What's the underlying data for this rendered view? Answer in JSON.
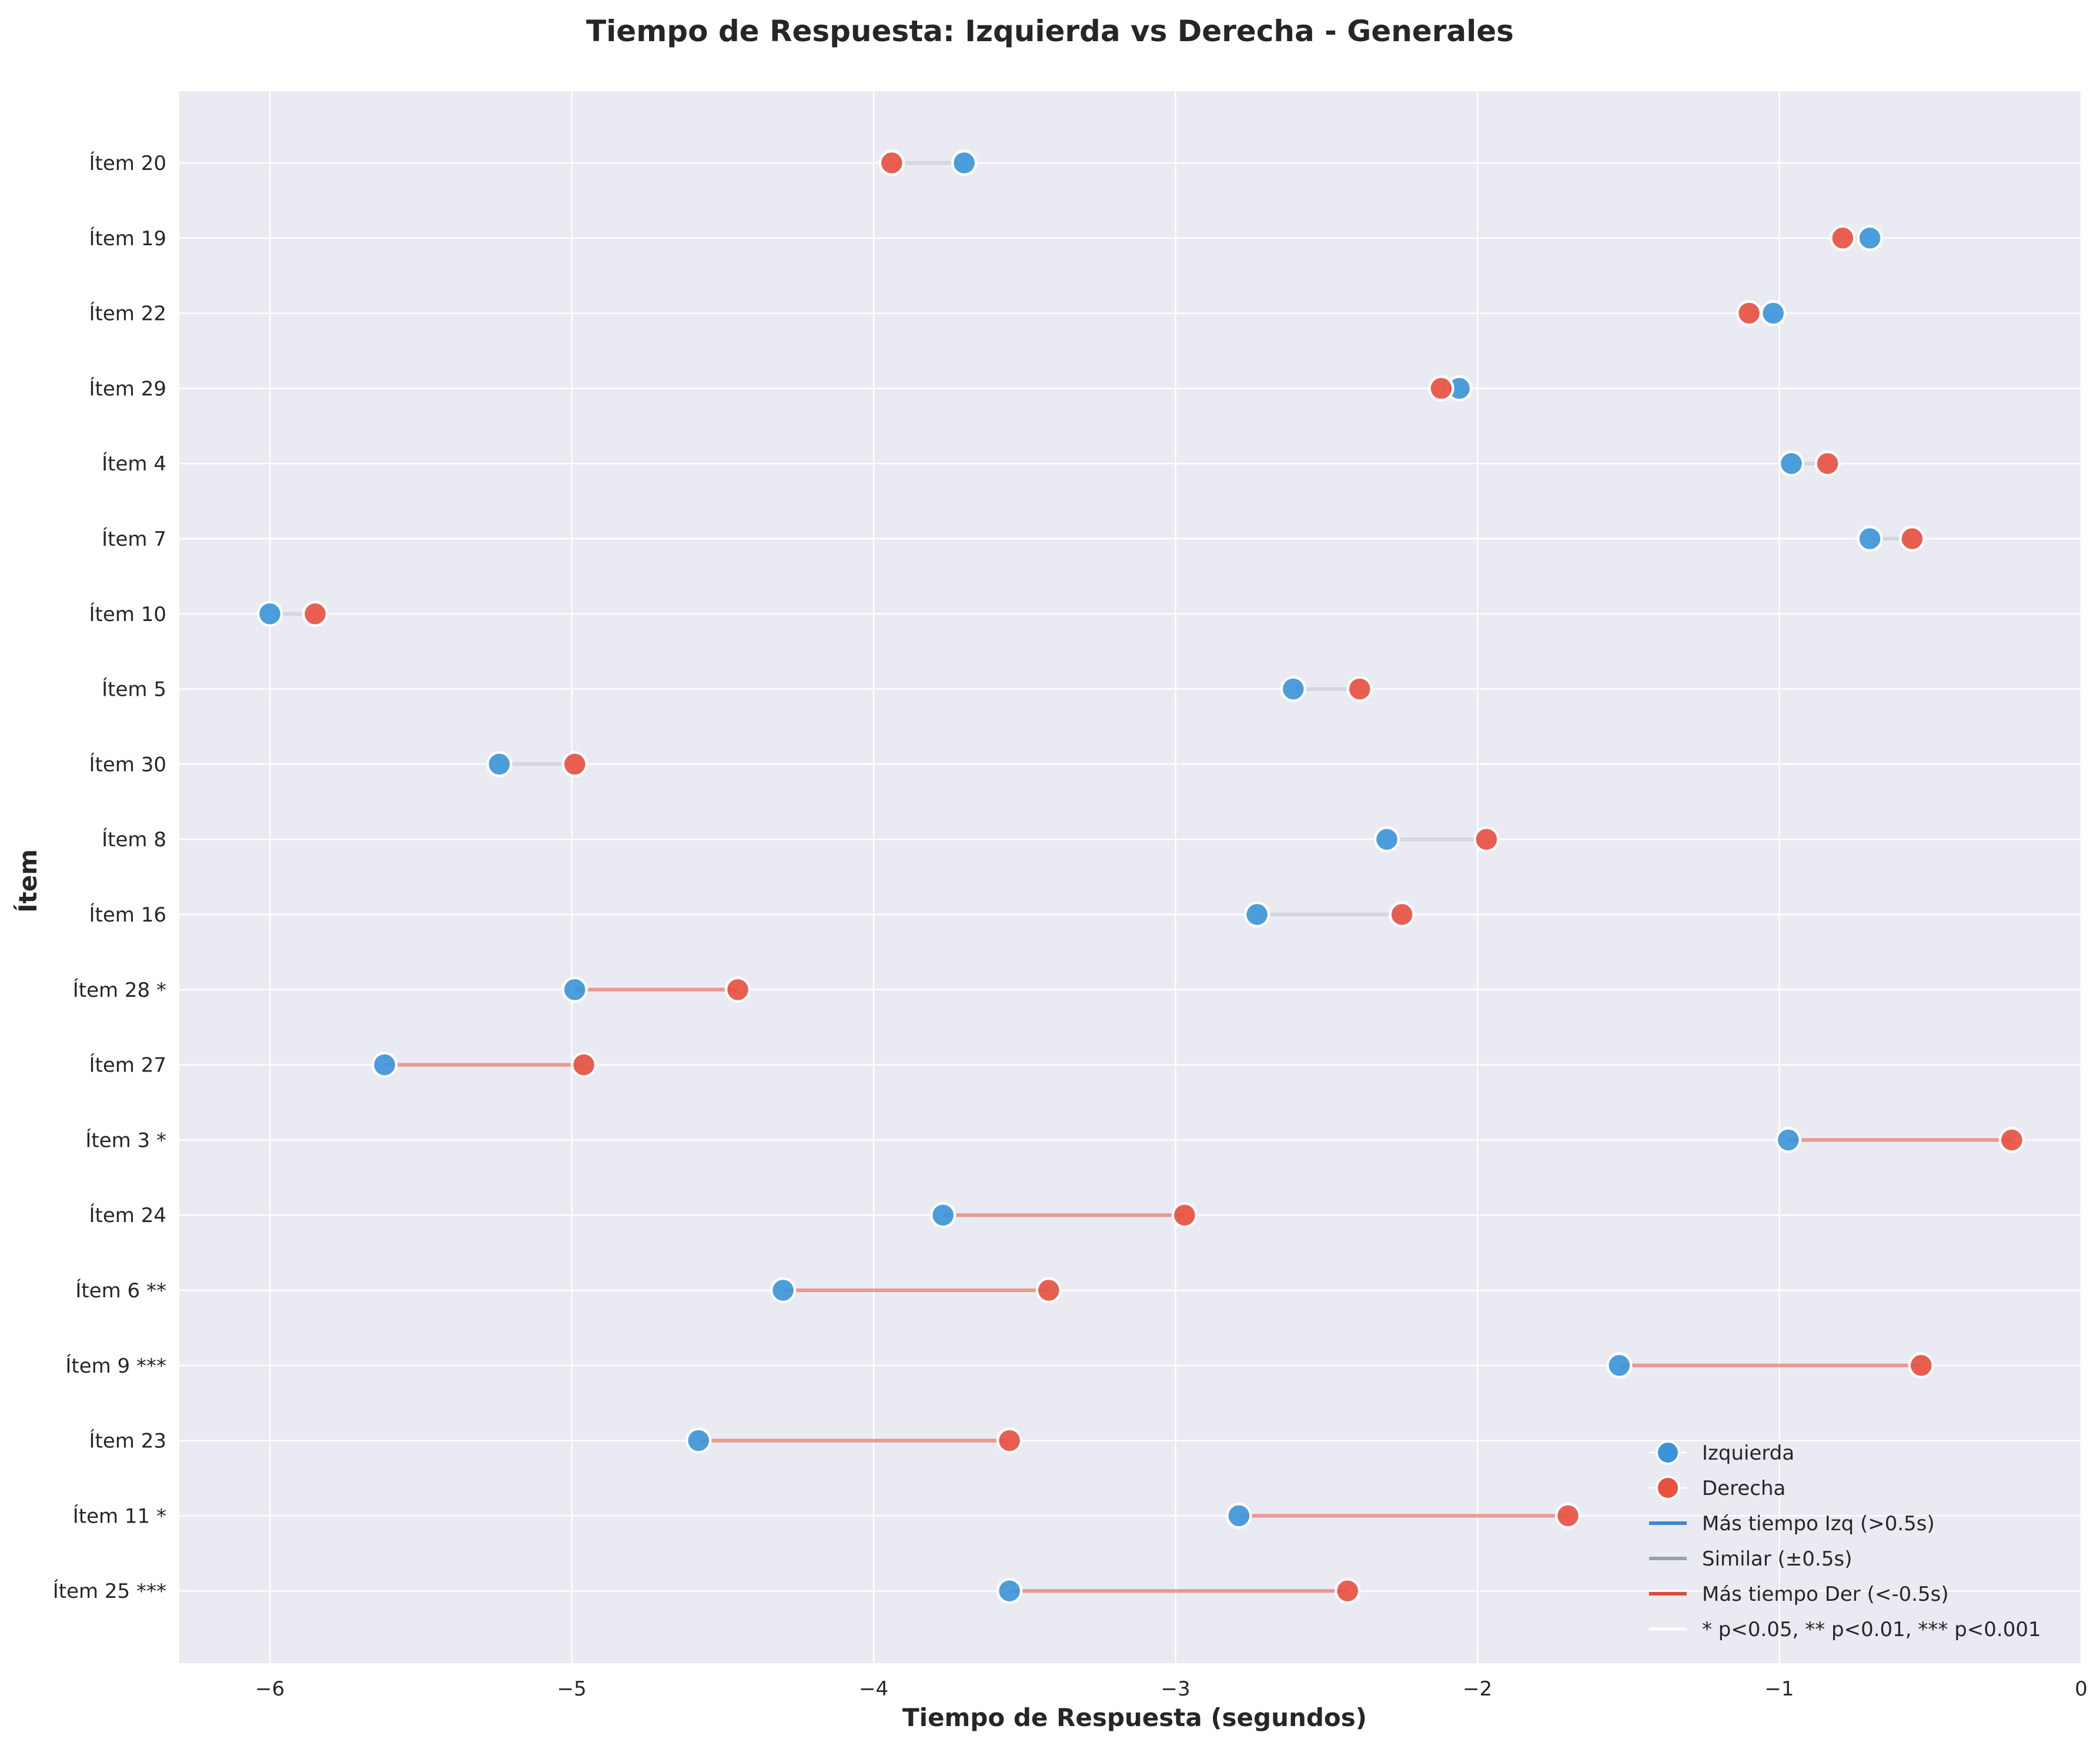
{
  "chart_data": {
    "type": "dumbbell",
    "title": "Tiempo de Respuesta: Izquierda vs Derecha - Generales",
    "xlabel": "Tiempo de Respuesta (segundos)",
    "ylabel": "Ítem",
    "xlim": [
      -6.3,
      0
    ],
    "xticks": [
      -6,
      -5,
      -4,
      -3,
      -2,
      -1,
      0
    ],
    "xtick_labels": [
      "−6",
      "−5",
      "−4",
      "−3",
      "−2",
      "−1",
      "0"
    ],
    "grid": true,
    "legend_position": "lower-right",
    "colors": {
      "izquierda": "#3a95d8",
      "derecha": "#e8503f",
      "mas_izq_line": "#3a86d0",
      "similar_line": "#9aa0a6",
      "mas_der_line": "#e04a3a",
      "background": "#eaeaf2"
    },
    "categories": [
      "Ítem 20",
      "Ítem 19",
      "Ítem 22",
      "Ítem 29",
      "Ítem 4",
      "Ítem 7",
      "Ítem 10",
      "Ítem 5",
      "Ítem 30",
      "Ítem 8",
      "Ítem 16",
      "Ítem 28 *",
      "Ítem 27",
      "Ítem 3 *",
      "Ítem 24",
      "Ítem 6 **",
      "Ítem 9 ***",
      "Ítem 23",
      "Ítem 11 *",
      "Ítem 25 ***"
    ],
    "series": [
      {
        "name": "Izquierda",
        "values": [
          -3.7,
          -0.7,
          -1.02,
          -2.06,
          -0.96,
          -0.7,
          -6.0,
          -2.61,
          -5.24,
          -2.3,
          -2.73,
          -4.99,
          -5.62,
          -0.97,
          -3.77,
          -4.3,
          -1.53,
          -4.58,
          -2.79,
          -3.55
        ]
      },
      {
        "name": "Derecha",
        "values": [
          -3.94,
          -0.79,
          -1.1,
          -2.12,
          -0.84,
          -0.56,
          -5.85,
          -2.39,
          -4.99,
          -1.97,
          -2.25,
          -4.45,
          -4.96,
          -0.23,
          -2.97,
          -3.42,
          -0.53,
          -3.55,
          -1.7,
          -2.43
        ]
      }
    ],
    "legend": [
      {
        "label": "Izquierda",
        "kind": "marker",
        "color_key": "izquierda"
      },
      {
        "label": "Derecha",
        "kind": "marker",
        "color_key": "derecha"
      },
      {
        "label": "Más tiempo Izq (>0.5s)",
        "kind": "line",
        "color_key": "mas_izq_line"
      },
      {
        "label": "Similar (±0.5s)",
        "kind": "line",
        "color_key": "similar_line"
      },
      {
        "label": "Más tiempo Der (<-0.5s)",
        "kind": "line",
        "color_key": "mas_der_line"
      },
      {
        "label": "* p<0.05, ** p<0.01, *** p<0.001",
        "kind": "blank",
        "color_key": "background"
      }
    ]
  }
}
